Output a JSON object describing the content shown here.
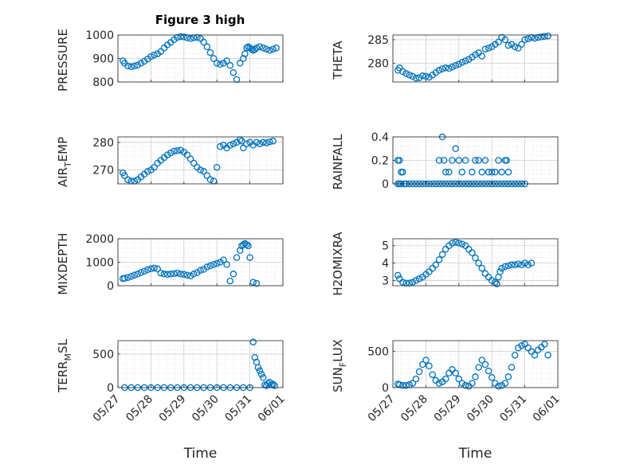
{
  "figure_title": "Figure 3 high",
  "marker_color": "#0072bd",
  "chart_data": [
    {
      "type": "scatter",
      "ylabel": "PRESSURE",
      "xlabel": "",
      "xlim": [
        0,
        5
      ],
      "ylim": [
        800,
        1000
      ],
      "yticks": [
        800,
        900,
        1000
      ],
      "grid": true,
      "x": [
        0.15,
        0.2,
        0.3,
        0.4,
        0.5,
        0.6,
        0.7,
        0.8,
        0.9,
        1.0,
        1.1,
        1.2,
        1.3,
        1.4,
        1.5,
        1.6,
        1.7,
        1.8,
        1.9,
        2.0,
        2.1,
        2.2,
        2.3,
        2.4,
        2.5,
        2.6,
        2.7,
        2.8,
        2.9,
        3.0,
        3.1,
        3.2,
        3.3,
        3.4,
        3.5,
        3.6,
        3.7,
        3.8,
        3.85,
        3.9,
        3.95,
        4.0,
        4.05,
        4.1,
        4.15,
        4.2,
        4.3,
        4.4,
        4.5,
        4.6,
        4.7,
        4.8
      ],
      "y": [
        890,
        880,
        868,
        865,
        868,
        872,
        880,
        888,
        898,
        908,
        915,
        920,
        930,
        945,
        958,
        968,
        980,
        990,
        993,
        992,
        988,
        985,
        988,
        990,
        985,
        970,
        950,
        925,
        900,
        880,
        875,
        880,
        890,
        870,
        840,
        810,
        880,
        900,
        920,
        945,
        950,
        945,
        940,
        935,
        938,
        945,
        950,
        945,
        940,
        935,
        940,
        945
      ]
    },
    {
      "type": "scatter",
      "ylabel": "THETA",
      "xlabel": "",
      "xlim": [
        0,
        5
      ],
      "ylim": [
        276,
        286
      ],
      "yticks": [
        280,
        285
      ],
      "grid": true,
      "x": [
        0.15,
        0.2,
        0.3,
        0.4,
        0.5,
        0.6,
        0.7,
        0.8,
        0.9,
        1.0,
        1.1,
        1.2,
        1.3,
        1.4,
        1.5,
        1.6,
        1.7,
        1.8,
        1.9,
        2.0,
        2.1,
        2.2,
        2.3,
        2.4,
        2.5,
        2.6,
        2.7,
        2.8,
        2.9,
        3.0,
        3.1,
        3.2,
        3.3,
        3.4,
        3.5,
        3.6,
        3.7,
        3.8,
        3.9,
        4.0,
        4.1,
        4.2,
        4.3,
        4.4,
        4.5,
        4.6,
        4.7
      ],
      "y": [
        278.5,
        279,
        278.2,
        277.8,
        277.5,
        277.2,
        276.8,
        276.9,
        277.3,
        277.2,
        277,
        277.5,
        278,
        278.5,
        278.8,
        279,
        278.9,
        279.2,
        279.5,
        279.8,
        280.2,
        280.5,
        280.8,
        281.3,
        281.8,
        282.2,
        281.5,
        283,
        283.2,
        283.5,
        284,
        284.5,
        285.5,
        285,
        283.8,
        284,
        283.5,
        283.2,
        284,
        285,
        285.2,
        285.5,
        285.3,
        285.5,
        285.6,
        285.7,
        285.8
      ]
    },
    {
      "type": "scatter",
      "ylabel": "AIR_TEMP",
      "xlabel": "",
      "xlim": [
        0,
        5
      ],
      "ylim": [
        265,
        282
      ],
      "yticks": [
        270,
        280
      ],
      "grid": true,
      "x": [
        0.15,
        0.2,
        0.3,
        0.4,
        0.5,
        0.6,
        0.7,
        0.8,
        0.9,
        1.0,
        1.1,
        1.2,
        1.3,
        1.4,
        1.5,
        1.6,
        1.7,
        1.8,
        1.9,
        2.0,
        2.1,
        2.2,
        2.3,
        2.4,
        2.5,
        2.6,
        2.7,
        2.8,
        2.9,
        3.0,
        3.1,
        3.2,
        3.3,
        3.4,
        3.5,
        3.6,
        3.7,
        3.75,
        3.8,
        3.9,
        4.0,
        4.1,
        4.2,
        4.3,
        4.4,
        4.5,
        4.6,
        4.7
      ],
      "y": [
        269,
        268,
        266.5,
        266,
        266,
        266.5,
        267.5,
        268.5,
        269.5,
        270,
        271,
        272.5,
        273.5,
        274.5,
        275.5,
        276.2,
        276.8,
        277,
        277.2,
        276.5,
        275.5,
        274,
        272.5,
        271,
        270,
        269.5,
        268,
        266.5,
        266,
        271,
        278.5,
        279,
        278,
        279,
        279.5,
        280,
        281,
        280.5,
        278,
        279.5,
        280,
        279,
        280,
        279.5,
        280,
        279.8,
        280.2,
        280.5
      ]
    },
    {
      "type": "scatter",
      "ylabel": "RAINFALL",
      "xlabel": "",
      "xlim": [
        0,
        5
      ],
      "ylim": [
        0,
        0.4
      ],
      "yticks": [
        0,
        0.2,
        0.4
      ],
      "grid": true,
      "x": [
        0.15,
        0.2,
        0.25,
        0.3,
        0.35,
        0.4,
        0.5,
        0.6,
        0.7,
        0.8,
        0.9,
        1.0,
        1.1,
        1.2,
        1.3,
        1.4,
        1.5,
        1.6,
        1.7,
        1.8,
        1.9,
        2.0,
        2.1,
        2.2,
        2.3,
        2.4,
        2.5,
        2.6,
        2.7,
        2.8,
        2.9,
        3.0,
        3.1,
        3.2,
        3.3,
        3.4,
        3.5,
        3.6,
        3.7,
        3.8,
        3.9,
        4.0,
        1.4,
        1.5,
        1.55,
        1.6,
        1.7,
        1.8,
        1.9,
        2.0,
        2.1,
        2.2,
        2.3,
        2.4,
        2.5,
        2.6,
        2.7,
        2.8,
        2.9,
        3.0,
        3.1,
        3.2,
        3.3,
        3.4,
        3.45,
        3.5,
        0.15,
        0.2,
        0.25
      ],
      "y": [
        0.2,
        0.2,
        0.1,
        0.1,
        0,
        0,
        0,
        0,
        0,
        0,
        0,
        0,
        0,
        0,
        0,
        0,
        0,
        0,
        0,
        0,
        0,
        0,
        0,
        0,
        0,
        0,
        0,
        0,
        0,
        0,
        0,
        0,
        0,
        0,
        0,
        0,
        0,
        0,
        0,
        0,
        0,
        0,
        0.2,
        0.4,
        0.2,
        0.1,
        0.1,
        0.2,
        0.3,
        0.2,
        0.1,
        0.2,
        0,
        0.1,
        0.2,
        0.2,
        0.1,
        0.2,
        0.1,
        0.1,
        0.1,
        0.2,
        0.1,
        0.2,
        0.2,
        0.1,
        0,
        0,
        0
      ]
    },
    {
      "type": "scatter",
      "ylabel": "MIXDEPTH",
      "xlabel": "",
      "xlim": [
        0,
        5
      ],
      "ylim": [
        0,
        2000
      ],
      "yticks": [
        0,
        1000,
        2000
      ],
      "grid": true,
      "x": [
        0.15,
        0.2,
        0.3,
        0.4,
        0.5,
        0.6,
        0.7,
        0.8,
        0.9,
        1.0,
        1.1,
        1.2,
        1.3,
        1.4,
        1.5,
        1.6,
        1.7,
        1.8,
        1.9,
        2.0,
        2.1,
        2.2,
        2.3,
        2.4,
        2.5,
        2.6,
        2.7,
        2.8,
        2.9,
        3.0,
        3.1,
        3.2,
        3.3,
        3.4,
        3.5,
        3.6,
        3.7,
        3.75,
        3.8,
        3.85,
        3.9,
        3.95,
        4.0,
        4.1,
        4.2
      ],
      "y": [
        300,
        320,
        350,
        400,
        450,
        500,
        560,
        620,
        680,
        720,
        750,
        720,
        540,
        500,
        480,
        500,
        520,
        540,
        500,
        480,
        450,
        420,
        500,
        560,
        650,
        700,
        800,
        850,
        900,
        950,
        1000,
        1100,
        900,
        200,
        500,
        1200,
        1500,
        1700,
        1750,
        1800,
        1750,
        1700,
        1200,
        150,
        100
      ]
    },
    {
      "type": "scatter",
      "ylabel": "H2OMIXRA",
      "xlabel": "",
      "xlim": [
        0,
        5
      ],
      "ylim": [
        2.7,
        5.4
      ],
      "yticks": [
        3,
        4,
        5
      ],
      "grid": true,
      "x": [
        0.15,
        0.2,
        0.3,
        0.4,
        0.5,
        0.6,
        0.7,
        0.8,
        0.9,
        1.0,
        1.1,
        1.2,
        1.3,
        1.4,
        1.5,
        1.6,
        1.7,
        1.8,
        1.9,
        2.0,
        2.1,
        2.2,
        2.3,
        2.4,
        2.5,
        2.6,
        2.7,
        2.8,
        2.9,
        3.0,
        3.1,
        3.15,
        3.2,
        3.25,
        3.3,
        3.4,
        3.5,
        3.6,
        3.7,
        3.8,
        3.9,
        4.0,
        4.1,
        4.2
      ],
      "y": [
        3.3,
        3.1,
        2.9,
        2.85,
        2.85,
        2.9,
        3.0,
        3.1,
        3.2,
        3.35,
        3.5,
        3.7,
        3.9,
        4.2,
        4.5,
        4.8,
        5.0,
        5.15,
        5.2,
        5.15,
        5.1,
        5.0,
        4.8,
        4.6,
        4.3,
        4.0,
        3.7,
        3.4,
        3.2,
        3.0,
        2.9,
        2.8,
        3.2,
        3.5,
        3.7,
        3.8,
        3.85,
        3.9,
        3.9,
        3.95,
        3.9,
        4.0,
        3.9,
        4.0
      ]
    },
    {
      "type": "scatter",
      "ylabel": "TERR_MSL",
      "xlabel": "Time",
      "xlim": [
        0,
        5
      ],
      "ylim": [
        0,
        700
      ],
      "yticks": [
        0,
        500
      ],
      "grid": true,
      "xticklabels": [
        "05/27",
        "05/28",
        "05/29",
        "05/30",
        "05/31",
        "06/01"
      ],
      "x": [
        0.2,
        0.4,
        0.6,
        0.8,
        1.0,
        1.2,
        1.4,
        1.6,
        1.8,
        2.0,
        2.2,
        2.4,
        2.6,
        2.8,
        3.0,
        3.2,
        3.4,
        3.6,
        3.8,
        4.0,
        4.1,
        4.15,
        4.2,
        4.25,
        4.3,
        4.35,
        4.4,
        4.45,
        4.5,
        4.55,
        4.6,
        4.65,
        4.7,
        4.75
      ],
      "y": [
        0,
        0,
        0,
        0,
        0,
        0,
        0,
        0,
        0,
        0,
        0,
        0,
        0,
        0,
        0,
        0,
        0,
        0,
        0,
        0,
        680,
        450,
        380,
        300,
        250,
        200,
        150,
        40,
        30,
        60,
        80,
        40,
        50,
        30
      ]
    },
    {
      "type": "scatter",
      "ylabel": "SUN_FLUX",
      "xlabel": "Time",
      "xlim": [
        0,
        5
      ],
      "ylim": [
        0,
        650
      ],
      "yticks": [
        0,
        500
      ],
      "grid": true,
      "xticklabels": [
        "05/27",
        "05/28",
        "05/29",
        "05/30",
        "05/31",
        "06/01"
      ],
      "x": [
        0.15,
        0.2,
        0.3,
        0.4,
        0.5,
        0.6,
        0.7,
        0.8,
        0.9,
        1.0,
        1.1,
        1.2,
        1.3,
        1.4,
        1.5,
        1.6,
        1.7,
        1.8,
        1.9,
        2.0,
        2.1,
        2.2,
        2.3,
        2.4,
        2.5,
        2.6,
        2.7,
        2.8,
        2.9,
        3.0,
        3.1,
        3.2,
        3.3,
        3.4,
        3.5,
        3.6,
        3.7,
        3.8,
        3.9,
        4.0,
        4.1,
        4.2,
        4.3,
        4.4,
        4.5,
        4.6,
        4.7
      ],
      "y": [
        50,
        40,
        30,
        30,
        40,
        60,
        120,
        220,
        320,
        380,
        300,
        180,
        100,
        60,
        80,
        120,
        200,
        250,
        200,
        120,
        60,
        30,
        20,
        60,
        150,
        280,
        380,
        320,
        230,
        140,
        60,
        20,
        30,
        60,
        150,
        280,
        450,
        550,
        580,
        600,
        550,
        500,
        450,
        520,
        560,
        600,
        450
      ]
    }
  ]
}
